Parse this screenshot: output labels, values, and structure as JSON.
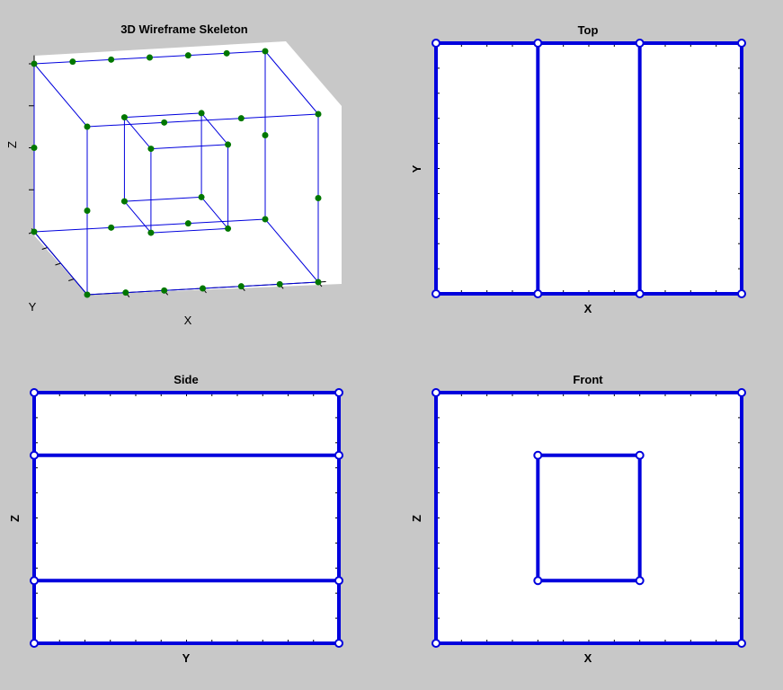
{
  "window": {
    "background": "#c8c8c8"
  },
  "colors": {
    "plot_bg": "#ffffff",
    "edge": "#0000dd",
    "node_fill": "#007700",
    "wire": "#0000dd",
    "axis": "#000000"
  },
  "panels": {
    "wireframe": {
      "title": "3D Wireframe Skeleton",
      "xlabel": "X",
      "ylabel": "Y",
      "zlabel": "Z"
    },
    "top": {
      "title": "Top",
      "xlabel": "X",
      "ylabel": "Y"
    },
    "side": {
      "title": "Side",
      "xlabel": "Y",
      "ylabel": "Z"
    },
    "front": {
      "title": "Front",
      "xlabel": "X",
      "ylabel": "Z"
    }
  },
  "chart_data": [
    {
      "type": "scatter",
      "view": "3d",
      "title": "3D Wireframe Skeleton",
      "xlabel": "X",
      "ylabel": "Y",
      "zlabel": "Z",
      "xlim": [
        0,
        3
      ],
      "ylim": [
        0,
        2
      ],
      "zlim": [
        0,
        2
      ],
      "nodes": [
        [
          0,
          0,
          0
        ],
        [
          1,
          0,
          0
        ],
        [
          2,
          0,
          0
        ],
        [
          3,
          0,
          0
        ],
        [
          0,
          2,
          0
        ],
        [
          1,
          2,
          0
        ],
        [
          2,
          2,
          0
        ],
        [
          3,
          2,
          0
        ],
        [
          0,
          0,
          2
        ],
        [
          1,
          0,
          2
        ],
        [
          2,
          0,
          2
        ],
        [
          3,
          0,
          2
        ],
        [
          0,
          2,
          2
        ],
        [
          1,
          2,
          2
        ],
        [
          2,
          2,
          2
        ],
        [
          3,
          2,
          2
        ],
        [
          0,
          0,
          1
        ],
        [
          3,
          0,
          1
        ],
        [
          0,
          2,
          1
        ],
        [
          3,
          2,
          1
        ],
        [
          1,
          0.5,
          0.5
        ],
        [
          2,
          0.5,
          0.5
        ],
        [
          1,
          1.5,
          0.5
        ],
        [
          2,
          1.5,
          0.5
        ],
        [
          1,
          0.5,
          1.5
        ],
        [
          2,
          0.5,
          1.5
        ],
        [
          1,
          1.5,
          1.5
        ],
        [
          2,
          1.5,
          1.5
        ]
      ],
      "edges": [
        [
          0,
          3
        ],
        [
          4,
          7
        ],
        [
          8,
          11
        ],
        [
          12,
          15
        ],
        [
          0,
          4
        ],
        [
          3,
          7
        ],
        [
          8,
          12
        ],
        [
          11,
          15
        ],
        [
          0,
          8
        ],
        [
          3,
          11
        ],
        [
          4,
          12
        ],
        [
          7,
          15
        ],
        [
          20,
          21
        ],
        [
          22,
          23
        ],
        [
          24,
          25
        ],
        [
          26,
          27
        ],
        [
          20,
          22
        ],
        [
          21,
          23
        ],
        [
          24,
          26
        ],
        [
          25,
          27
        ],
        [
          20,
          24
        ],
        [
          21,
          25
        ],
        [
          22,
          26
        ],
        [
          23,
          27
        ]
      ]
    },
    {
      "type": "line",
      "view": "top",
      "title": "Top",
      "xlabel": "X",
      "ylabel": "Y",
      "xlim": [
        0,
        3
      ],
      "ylim": [
        0,
        2
      ],
      "segments": [
        [
          [
            0,
            0
          ],
          [
            3,
            0
          ]
        ],
        [
          [
            0,
            2
          ],
          [
            3,
            2
          ]
        ],
        [
          [
            0,
            0
          ],
          [
            0,
            2
          ]
        ],
        [
          [
            1,
            0
          ],
          [
            1,
            2
          ]
        ],
        [
          [
            2,
            0
          ],
          [
            2,
            2
          ]
        ],
        [
          [
            3,
            0
          ],
          [
            3,
            2
          ]
        ]
      ],
      "points": [
        [
          0,
          0
        ],
        [
          1,
          0
        ],
        [
          2,
          0
        ],
        [
          3,
          0
        ],
        [
          0,
          2
        ],
        [
          1,
          2
        ],
        [
          2,
          2
        ],
        [
          3,
          2
        ]
      ]
    },
    {
      "type": "line",
      "view": "side",
      "title": "Side",
      "xlabel": "Y",
      "ylabel": "Z",
      "xlim": [
        0,
        2
      ],
      "ylim": [
        0,
        2
      ],
      "segments": [
        [
          [
            0,
            0
          ],
          [
            2,
            0
          ]
        ],
        [
          [
            0,
            2
          ],
          [
            2,
            2
          ]
        ],
        [
          [
            0,
            0.5
          ],
          [
            2,
            0.5
          ]
        ],
        [
          [
            0,
            1.5
          ],
          [
            2,
            1.5
          ]
        ],
        [
          [
            0,
            0
          ],
          [
            0,
            2
          ]
        ],
        [
          [
            2,
            0
          ],
          [
            2,
            2
          ]
        ]
      ],
      "points": [
        [
          0,
          0
        ],
        [
          2,
          0
        ],
        [
          0,
          2
        ],
        [
          2,
          2
        ],
        [
          0,
          0.5
        ],
        [
          2,
          0.5
        ],
        [
          0,
          1.5
        ],
        [
          2,
          1.5
        ]
      ]
    },
    {
      "type": "line",
      "view": "front",
      "title": "Front",
      "xlabel": "X",
      "ylabel": "Z",
      "xlim": [
        0,
        3
      ],
      "ylim": [
        0,
        2
      ],
      "segments": [
        [
          [
            0,
            0
          ],
          [
            3,
            0
          ]
        ],
        [
          [
            0,
            2
          ],
          [
            3,
            2
          ]
        ],
        [
          [
            0,
            0
          ],
          [
            0,
            2
          ]
        ],
        [
          [
            3,
            0
          ],
          [
            3,
            2
          ]
        ],
        [
          [
            1,
            0.5
          ],
          [
            2,
            0.5
          ]
        ],
        [
          [
            1,
            1.5
          ],
          [
            2,
            1.5
          ]
        ],
        [
          [
            1,
            0.5
          ],
          [
            1,
            1.5
          ]
        ],
        [
          [
            2,
            0.5
          ],
          [
            2,
            1.5
          ]
        ]
      ],
      "points": [
        [
          0,
          0
        ],
        [
          3,
          0
        ],
        [
          0,
          2
        ],
        [
          3,
          2
        ],
        [
          1,
          0.5
        ],
        [
          2,
          0.5
        ],
        [
          1,
          1.5
        ],
        [
          2,
          1.5
        ]
      ]
    }
  ]
}
